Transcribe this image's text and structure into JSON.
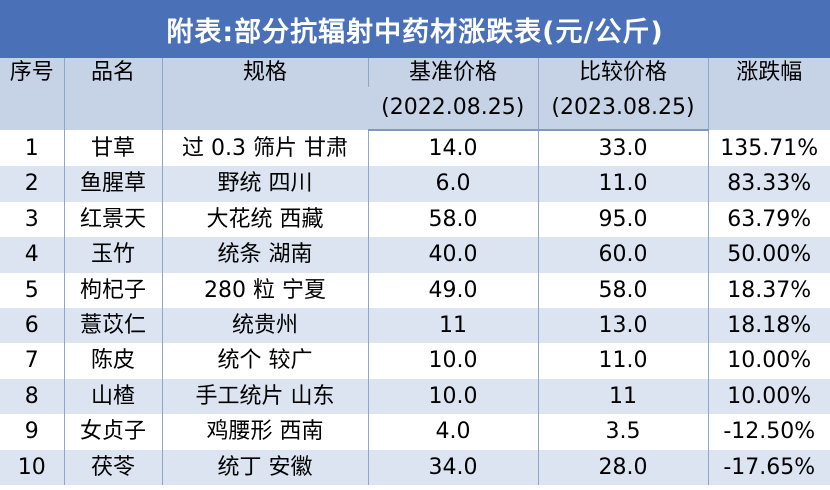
{
  "title": "附表:部分抗辐射中药材涨跌表(元/公斤)",
  "headers": {
    "seq": "序号",
    "name": "品名",
    "spec": "规格",
    "base_price": "基准价格",
    "base_date": "(2022.08.25)",
    "cmp_price": "比较价格",
    "cmp_date": "(2023.08.25)",
    "change": "涨跌幅"
  },
  "rows": [
    {
      "seq": "1",
      "name": "甘草",
      "spec": "过 0.3 筛片  甘肃",
      "base": "14.0",
      "cmp": "33.0",
      "change": "135.71%"
    },
    {
      "seq": "2",
      "name": "鱼腥草",
      "spec": "野统  四川",
      "base": "6.0",
      "cmp": "11.0",
      "change": "83.33%"
    },
    {
      "seq": "3",
      "name": "红景天",
      "spec": "大花统  西藏",
      "base": "58.0",
      "cmp": "95.0",
      "change": "63.79%"
    },
    {
      "seq": "4",
      "name": "玉竹",
      "spec": "统条  湖南",
      "base": "40.0",
      "cmp": "60.0",
      "change": "50.00%"
    },
    {
      "seq": "5",
      "name": "枸杞子",
      "spec": "280 粒  宁夏",
      "base": "49.0",
      "cmp": "58.0",
      "change": "18.37%"
    },
    {
      "seq": "6",
      "name": "薏苡仁",
      "spec": "统贵州",
      "base": "11",
      "cmp": "13.0",
      "change": "18.18%"
    },
    {
      "seq": "7",
      "name": "陈皮",
      "spec": "统个  较广",
      "base": "10.0",
      "cmp": "11.0",
      "change": "10.00%"
    },
    {
      "seq": "8",
      "name": "山楂",
      "spec": "手工统片  山东",
      "base": "10.0",
      "cmp": "11",
      "change": "10.00%"
    },
    {
      "seq": "9",
      "name": "女贞子",
      "spec": "鸡腰形  西南",
      "base": "4.0",
      "cmp": "3.5",
      "change": "-12.50%"
    },
    {
      "seq": "10",
      "name": "茯苓",
      "spec": "统丁  安徽",
      "base": "34.0",
      "cmp": "28.0",
      "change": "-17.65%"
    }
  ],
  "colors": {
    "title_bg": "#4a71b7",
    "header_bg": "#c6d3e6",
    "stripe_bg": "#dce4f1"
  }
}
